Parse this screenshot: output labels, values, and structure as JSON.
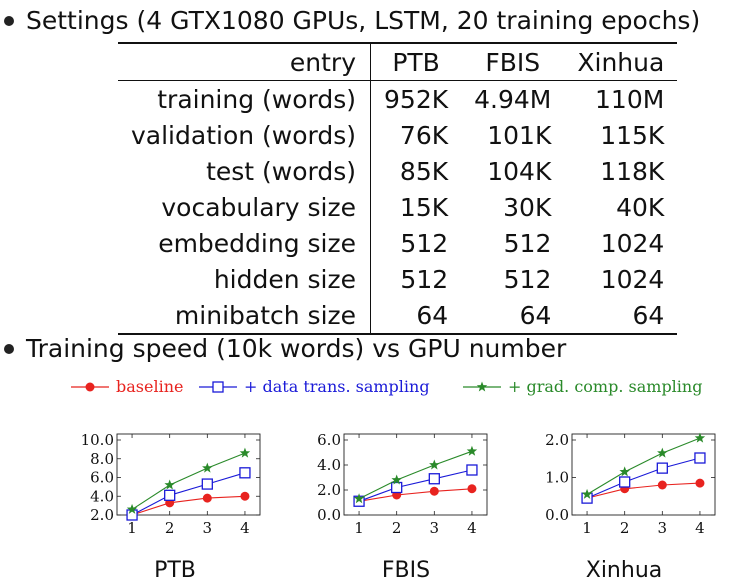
{
  "sections": {
    "settings_title": "Settings (4 GTX1080 GPUs, LSTM, 20 training epochs)",
    "speed_title": "Training speed (10k words) vs GPU number"
  },
  "table": {
    "header": [
      "entry",
      "PTB",
      "FBIS",
      "Xinhua"
    ],
    "rows": [
      [
        "training (words)",
        "952K",
        "4.94M",
        "110M"
      ],
      [
        "validation (words)",
        "76K",
        "101K",
        "115K"
      ],
      [
        "test (words)",
        "85K",
        "104K",
        "118K"
      ],
      [
        "vocabulary size",
        "15K",
        "30K",
        "40K"
      ],
      [
        "embedding size",
        "512",
        "512",
        "1024"
      ],
      [
        "hidden size",
        "512",
        "512",
        "1024"
      ],
      [
        "minibatch size",
        "64",
        "64",
        "64"
      ]
    ]
  },
  "legend": [
    {
      "label": "baseline",
      "color": "#e8231f",
      "marker": "circle"
    },
    {
      "label": "+ data trans. sampling",
      "color": "#1a1ad8",
      "marker": "square"
    },
    {
      "label": "+ grad. comp. sampling",
      "color": "#2a8a2a",
      "marker": "star"
    }
  ],
  "chart_data": [
    {
      "type": "line",
      "title": "PTB",
      "x": [
        1,
        2,
        3,
        4
      ],
      "ylim": [
        2.0,
        10.0
      ],
      "yticks": [
        "2.0",
        "4.0",
        "6.0",
        "8.0",
        "10.0"
      ],
      "xticks": [
        "1",
        "2",
        "3",
        "4"
      ],
      "series": [
        {
          "name": "baseline",
          "values": [
            2.0,
            3.3,
            3.8,
            4.0
          ]
        },
        {
          "name": "+ data trans. sampling",
          "values": [
            2.0,
            4.1,
            5.3,
            6.5
          ]
        },
        {
          "name": "+ grad. comp. sampling",
          "values": [
            2.6,
            5.2,
            7.0,
            8.6
          ]
        }
      ]
    },
    {
      "type": "line",
      "title": "FBIS",
      "x": [
        1,
        2,
        3,
        4
      ],
      "ylim": [
        0.0,
        6.0
      ],
      "yticks": [
        "0.0",
        "2.0",
        "4.0",
        "6.0"
      ],
      "xticks": [
        "1",
        "2",
        "3",
        "4"
      ],
      "series": [
        {
          "name": "baseline",
          "values": [
            1.1,
            1.6,
            1.9,
            2.1
          ]
        },
        {
          "name": "+ data trans. sampling",
          "values": [
            1.1,
            2.2,
            2.9,
            3.6
          ]
        },
        {
          "name": "+ grad. comp. sampling",
          "values": [
            1.3,
            2.8,
            4.0,
            5.1
          ]
        }
      ]
    },
    {
      "type": "line",
      "title": "Xinhua",
      "x": [
        1,
        2,
        3,
        4
      ],
      "ylim": [
        0.0,
        2.0
      ],
      "yticks": [
        "0.0",
        "1.0",
        "2.0"
      ],
      "xticks": [
        "1",
        "2",
        "3",
        "4"
      ],
      "series": [
        {
          "name": "baseline",
          "values": [
            0.45,
            0.7,
            0.8,
            0.85
          ]
        },
        {
          "name": "+ data trans. sampling",
          "values": [
            0.45,
            0.88,
            1.25,
            1.52
          ]
        },
        {
          "name": "+ grad. comp. sampling",
          "values": [
            0.55,
            1.15,
            1.65,
            2.05
          ]
        }
      ]
    }
  ]
}
